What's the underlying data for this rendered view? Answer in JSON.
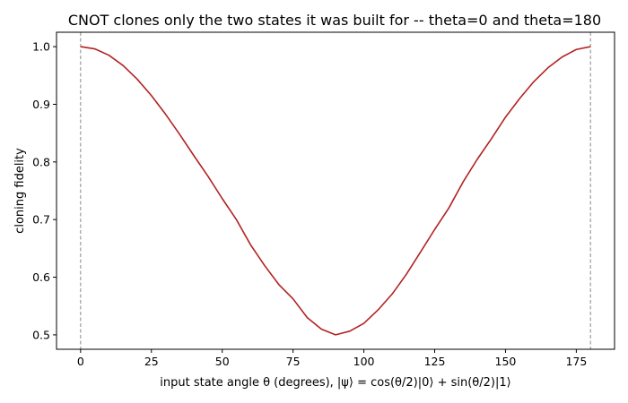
{
  "chart_data": {
    "type": "line",
    "title": "CNOT clones only the two states it was built for -- theta=0 and theta=180",
    "xlabel": "input state angle θ (degrees), |ψ⟩ = cos(θ/2)|0⟩ + sin(θ/2)|1⟩",
    "ylabel": "cloning fidelity",
    "xlim": [
      -8.5,
      188.5
    ],
    "ylim": [
      0.475,
      1.025
    ],
    "x_ticks": [
      0,
      25,
      50,
      75,
      100,
      125,
      150,
      175
    ],
    "x_tick_labels": [
      "0",
      "25",
      "50",
      "75",
      "100",
      "125",
      "150",
      "175"
    ],
    "y_ticks": [
      0.5,
      0.6,
      0.7,
      0.8,
      0.9,
      1.0
    ],
    "y_tick_labels": [
      "0.5",
      "0.6",
      "0.7",
      "0.8",
      "0.9",
      "1.0"
    ],
    "grid": false,
    "series": [
      {
        "color": "#b22222",
        "x": [
          0,
          5,
          10,
          15,
          20,
          25,
          30,
          35,
          40,
          45,
          50,
          55,
          60,
          65,
          70,
          75,
          80,
          85,
          90,
          95,
          100,
          105,
          110,
          115,
          120,
          125,
          130,
          135,
          140,
          145,
          150,
          155,
          160,
          165,
          170,
          175,
          180
        ],
        "y": [
          1.0,
          0.9962,
          0.9851,
          0.9672,
          0.9435,
          0.9151,
          0.8828,
          0.8476,
          0.8108,
          0.775,
          0.7364,
          0.7,
          0.6563,
          0.62,
          0.5872,
          0.5625,
          0.53,
          0.51,
          0.5,
          0.5064,
          0.52,
          0.5432,
          0.5709,
          0.605,
          0.6436,
          0.6828,
          0.72,
          0.765,
          0.8044,
          0.84,
          0.8776,
          0.91,
          0.9393,
          0.9634,
          0.9821,
          0.9951,
          1.0
        ]
      }
    ],
    "vlines": [
      {
        "x": 0,
        "color": "#888888",
        "style": "dashed"
      },
      {
        "x": 180,
        "color": "#888888",
        "style": "dashed"
      }
    ]
  }
}
